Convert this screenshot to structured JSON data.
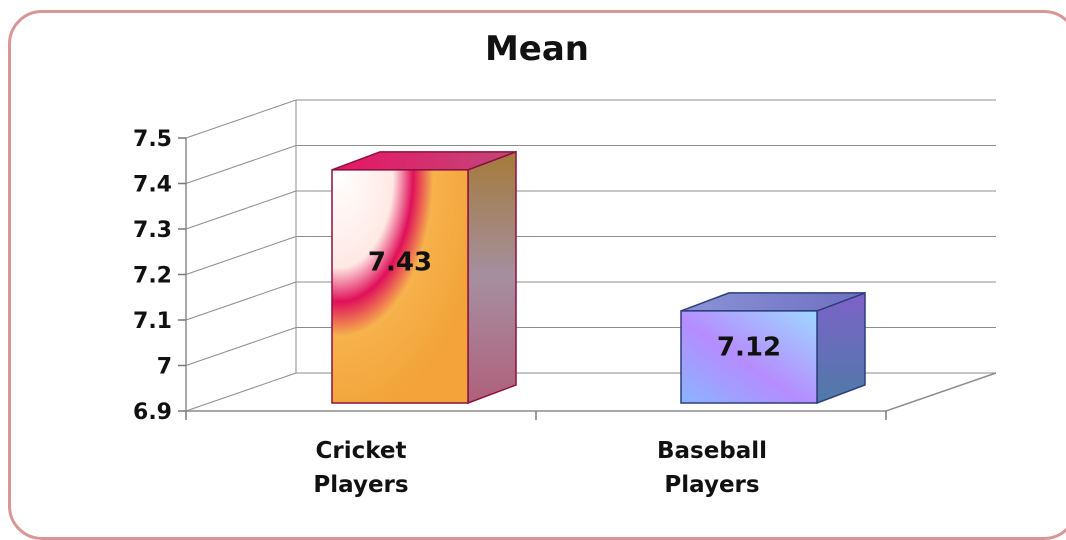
{
  "chart_data": {
    "type": "bar",
    "title": "Mean",
    "categories": [
      [
        "Cricket",
        "Players"
      ],
      [
        "Baseball",
        "Players"
      ]
    ],
    "values": [
      7.43,
      7.12
    ],
    "data_labels": [
      "7.43",
      "7.12"
    ],
    "yticks": [
      "6.9",
      "7",
      "7.1",
      "7.2",
      "7.3",
      "7.4",
      "7.5"
    ],
    "ylim": [
      6.9,
      7.5
    ],
    "grid": true,
    "legend": "none",
    "colors": [
      "#f3a33a",
      "#9aa8ff"
    ]
  }
}
